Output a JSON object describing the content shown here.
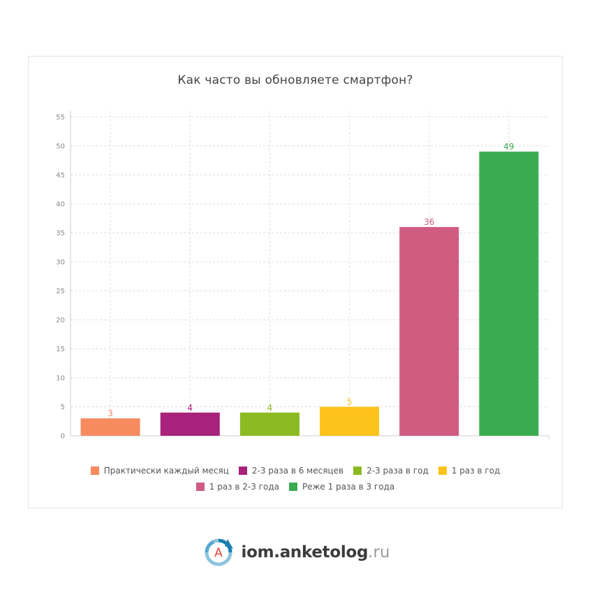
{
  "chart_data": {
    "type": "bar",
    "title": "Как часто вы обновляете смартфон?",
    "categories": [
      "Практически каждый месяц",
      "2-3 раза в 6 месяцев",
      "2-3 раза в год",
      "1 раз в год",
      "1 раз в 2-3 года",
      "Реже 1 раза в 3 года"
    ],
    "values": [
      3,
      4,
      4,
      5,
      36,
      49
    ],
    "colors": [
      "#f68b5f",
      "#a8217a",
      "#8cba22",
      "#fdc21c",
      "#d05c82",
      "#3bab52"
    ],
    "ylim": [
      0,
      56
    ],
    "yticks": [
      0,
      5,
      10,
      15,
      20,
      25,
      30,
      35,
      40,
      45,
      50,
      55
    ],
    "grid": true,
    "legend_position": "bottom"
  },
  "footer": {
    "logo_icon": "anketolog-logo-icon",
    "logo_letter": "А",
    "brand": "iom.anketolog",
    "tld": ".ru"
  }
}
